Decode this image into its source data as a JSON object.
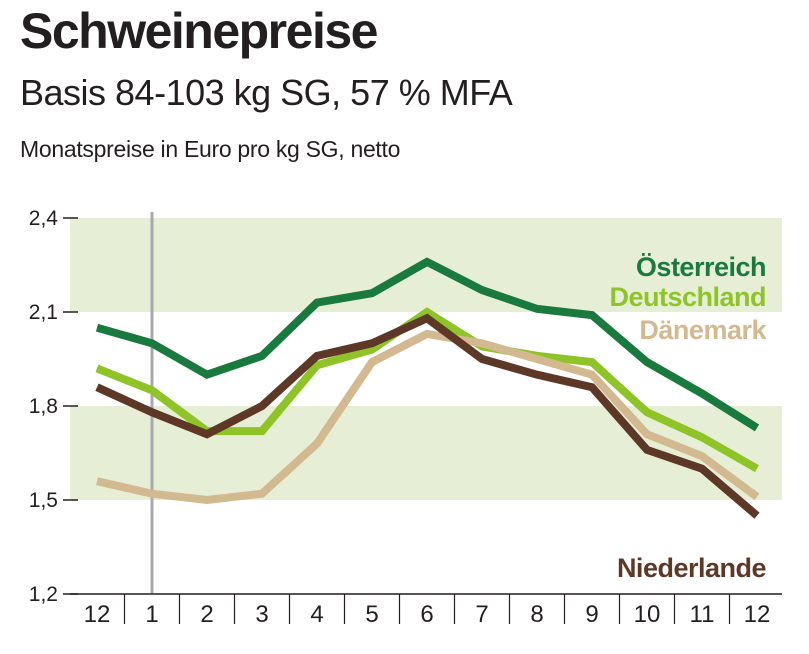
{
  "chart_data": {
    "type": "line",
    "title": "Schweinepreise",
    "subtitle": "Basis 84-103 kg SG, 57 % MFA",
    "ylabel": "Monatspreise in Euro pro kg SG, netto",
    "xlabel": "",
    "categories": [
      "12",
      "1",
      "2",
      "3",
      "4",
      "5",
      "6",
      "7",
      "8",
      "9",
      "10",
      "11",
      "12"
    ],
    "ylim": [
      1.2,
      2.4
    ],
    "yticks": [
      "1,2",
      "1,5",
      "1,8",
      "2,1",
      "2,4"
    ],
    "ytick_values": [
      1.2,
      1.5,
      1.8,
      2.1,
      2.4
    ],
    "year_divider_after_index": 1,
    "bands": [
      [
        1.5,
        1.8
      ],
      [
        2.1,
        2.4
      ]
    ],
    "band_color": "#e6efd6",
    "series": [
      {
        "name": "Österreich",
        "color": "#1a7a3e",
        "values": [
          2.05,
          2.0,
          1.9,
          1.96,
          2.13,
          2.16,
          2.26,
          2.17,
          2.11,
          2.09,
          1.94,
          1.84,
          1.73
        ]
      },
      {
        "name": "Deutschland",
        "color": "#8ec428",
        "values": [
          1.92,
          1.85,
          1.72,
          1.72,
          1.93,
          1.98,
          2.1,
          1.99,
          1.96,
          1.94,
          1.78,
          1.7,
          1.6
        ]
      },
      {
        "name": "Dänemark",
        "color": "#d3b98f",
        "values": [
          1.56,
          1.52,
          1.5,
          1.52,
          1.68,
          1.94,
          2.03,
          2.0,
          1.95,
          1.9,
          1.71,
          1.64,
          1.51
        ]
      },
      {
        "name": "Niederlande",
        "color": "#5e3826",
        "values": [
          1.86,
          1.78,
          1.71,
          1.8,
          1.96,
          2.0,
          2.08,
          1.95,
          1.9,
          1.86,
          1.66,
          1.6,
          1.45
        ]
      }
    ]
  }
}
